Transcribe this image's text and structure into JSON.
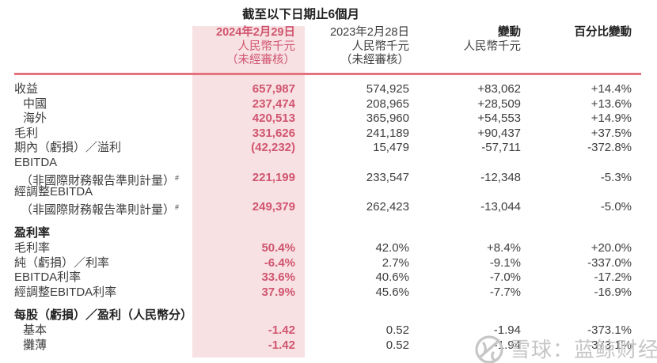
{
  "title": "截至以下日期止6個月",
  "columns": [
    {
      "lines": [
        "2024年2月29日",
        "人民幣千元",
        "（未經審核）"
      ]
    },
    {
      "lines": [
        "2023年2月28日",
        "人民幣千元",
        "（未經審核）"
      ]
    },
    {
      "lines": [
        "變動",
        "人民幣千元",
        ""
      ]
    },
    {
      "lines": [
        "百分比變動",
        "",
        ""
      ]
    }
  ],
  "rows": [
    {
      "label": "收益",
      "values": [
        "657,987",
        "574,925",
        "+83,062",
        "+14.4%"
      ]
    },
    {
      "label": "中國",
      "indent": 1,
      "values": [
        "237,474",
        "208,965",
        "+28,509",
        "+13.6%"
      ]
    },
    {
      "label": "海外",
      "indent": 1,
      "values": [
        "420,513",
        "365,960",
        "+54,553",
        "+14.9%"
      ]
    },
    {
      "label": "毛利",
      "values": [
        "331,626",
        "241,189",
        "+90,437",
        "+37.5%"
      ]
    },
    {
      "label": "期內（虧損）／溢利",
      "values": [
        "(42,232)",
        "15,479",
        "-57,711",
        "-372.8%"
      ]
    },
    {
      "label": "EBITDA",
      "values": [
        "",
        "",
        "",
        ""
      ]
    },
    {
      "label": "（非國際財務報告準則計量）",
      "sup": "#",
      "indent": 2,
      "values": [
        "221,199",
        "233,547",
        "-12,348",
        "-5.3%"
      ]
    },
    {
      "label": "經調整EBITDA",
      "values": [
        "",
        "",
        "",
        ""
      ]
    },
    {
      "label": "（非國際財務報告準則計量）",
      "sup": "#",
      "indent": 2,
      "values": [
        "249,379",
        "262,423",
        "-13,044",
        "-5.0%"
      ]
    },
    {
      "gap": 15
    },
    {
      "label": "盈利率",
      "bold": true,
      "values": [
        "",
        "",
        "",
        ""
      ]
    },
    {
      "label": "毛利率",
      "values": [
        "50.4%",
        "42.0%",
        "+8.4%",
        "+20.0%"
      ]
    },
    {
      "label": "純（虧損）／利率",
      "values": [
        "-6.4%",
        "2.7%",
        "-9.1%",
        "-337.0%"
      ]
    },
    {
      "label": "EBITDA利率",
      "values": [
        "33.6%",
        "40.6%",
        "-7.0%",
        "-17.2%"
      ]
    },
    {
      "label": "經調整EBITDA利率",
      "values": [
        "37.9%",
        "45.6%",
        "-7.7%",
        "-16.9%"
      ]
    },
    {
      "gap": 11
    },
    {
      "label": "每股（虧損）／盈利（人民幣分）",
      "bold": true,
      "values": [
        "",
        "",
        "",
        ""
      ]
    },
    {
      "label": "基本",
      "indent": 1,
      "values": [
        "-1.42",
        "0.52",
        "-1.94",
        "-373.1%"
      ]
    },
    {
      "label": "攤薄",
      "indent": 1,
      "values": [
        "-1.42",
        "0.52",
        "-1.94",
        "-373.1%"
      ]
    }
  ],
  "watermark": {
    "text": "雪球：蓝鲸财经",
    "logo": "snowball-icon"
  },
  "colors": {
    "highlight_bg": "#f8e1e2",
    "highlight_text": "#d05570",
    "rule": "#e5737f",
    "body_text": "#3d3d3d",
    "bold_text": "#222222",
    "watermark": "#c6c6c6"
  }
}
